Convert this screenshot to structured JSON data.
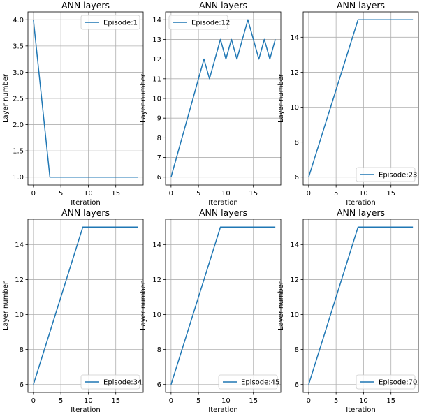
{
  "colors": {
    "line": "#1f77b4",
    "grid": "#b0b0b0",
    "axis": "#000000",
    "legend_border": "#cccccc"
  },
  "chart_data": [
    {
      "type": "line",
      "title": "ANN layers",
      "xlabel": "Iteration",
      "ylabel": "Layer number",
      "xlim": [
        -1,
        20
      ],
      "ylim": [
        0.85,
        4.15
      ],
      "xticks": [
        0,
        5,
        10,
        15
      ],
      "yticks": [
        1.0,
        1.5,
        2.0,
        2.5,
        3.0,
        3.5,
        4.0
      ],
      "ytick_labels": [
        "1.0",
        "1.5",
        "2.0",
        "2.5",
        "3.0",
        "3.5",
        "4.0"
      ],
      "grid": true,
      "legend_loc": "upper right",
      "series": [
        {
          "name": "Episode:1",
          "x": [
            0,
            1,
            2,
            3,
            4,
            5,
            6,
            7,
            8,
            9,
            10,
            11,
            12,
            13,
            14,
            15,
            16,
            17,
            18,
            19
          ],
          "y": [
            4,
            3,
            2,
            1,
            1,
            1,
            1,
            1,
            1,
            1,
            1,
            1,
            1,
            1,
            1,
            1,
            1,
            1,
            1,
            1
          ]
        }
      ]
    },
    {
      "type": "line",
      "title": "ANN layers",
      "xlabel": "Iteration",
      "ylabel": "Layer number",
      "xlim": [
        -1,
        20
      ],
      "ylim": [
        5.6,
        14.4
      ],
      "xticks": [
        0,
        5,
        10,
        15
      ],
      "yticks": [
        6,
        7,
        8,
        9,
        10,
        11,
        12,
        13,
        14
      ],
      "ytick_labels": [
        "6",
        "7",
        "8",
        "9",
        "10",
        "11",
        "12",
        "13",
        "14"
      ],
      "grid": true,
      "legend_loc": "upper left",
      "series": [
        {
          "name": "Episode:12",
          "x": [
            0,
            1,
            2,
            3,
            4,
            5,
            6,
            7,
            8,
            9,
            10,
            11,
            12,
            13,
            14,
            15,
            16,
            17,
            18,
            19
          ],
          "y": [
            6,
            7,
            8,
            9,
            10,
            11,
            12,
            11,
            12,
            13,
            12,
            13,
            12,
            13,
            14,
            13,
            12,
            13,
            12,
            13
          ]
        }
      ]
    },
    {
      "type": "line",
      "title": "ANN layers",
      "xlabel": "Iteration",
      "ylabel": "Layer number",
      "xlim": [
        -1,
        20
      ],
      "ylim": [
        5.55,
        15.45
      ],
      "xticks": [
        0,
        5,
        10,
        15
      ],
      "yticks": [
        6,
        8,
        10,
        12,
        14
      ],
      "ytick_labels": [
        "6",
        "8",
        "10",
        "12",
        "14"
      ],
      "grid": true,
      "legend_loc": "lower right",
      "series": [
        {
          "name": "Episode:23",
          "x": [
            0,
            1,
            2,
            3,
            4,
            5,
            6,
            7,
            8,
            9,
            10,
            11,
            12,
            13,
            14,
            15,
            16,
            17,
            18,
            19
          ],
          "y": [
            6,
            7,
            8,
            9,
            10,
            11,
            12,
            13,
            14,
            15,
            15,
            15,
            15,
            15,
            15,
            15,
            15,
            15,
            15,
            15
          ]
        }
      ]
    },
    {
      "type": "line",
      "title": "ANN layers",
      "xlabel": "Iteration",
      "ylabel": "Layer number",
      "xlim": [
        -1,
        20
      ],
      "ylim": [
        5.55,
        15.45
      ],
      "xticks": [
        0,
        5,
        10,
        15
      ],
      "yticks": [
        6,
        8,
        10,
        12,
        14
      ],
      "ytick_labels": [
        "6",
        "8",
        "10",
        "12",
        "14"
      ],
      "grid": true,
      "legend_loc": "lower right",
      "series": [
        {
          "name": "Episode:34",
          "x": [
            0,
            1,
            2,
            3,
            4,
            5,
            6,
            7,
            8,
            9,
            10,
            11,
            12,
            13,
            14,
            15,
            16,
            17,
            18,
            19
          ],
          "y": [
            6,
            7,
            8,
            9,
            10,
            11,
            12,
            13,
            14,
            15,
            15,
            15,
            15,
            15,
            15,
            15,
            15,
            15,
            15,
            15
          ]
        }
      ]
    },
    {
      "type": "line",
      "title": "ANN layers",
      "xlabel": "Iteration",
      "ylabel": "Layer number",
      "xlim": [
        -1,
        20
      ],
      "ylim": [
        5.55,
        15.45
      ],
      "xticks": [
        0,
        5,
        10,
        15
      ],
      "yticks": [
        6,
        8,
        10,
        12,
        14
      ],
      "ytick_labels": [
        "6",
        "8",
        "10",
        "12",
        "14"
      ],
      "grid": true,
      "legend_loc": "lower right",
      "series": [
        {
          "name": "Episode:45",
          "x": [
            0,
            1,
            2,
            3,
            4,
            5,
            6,
            7,
            8,
            9,
            10,
            11,
            12,
            13,
            14,
            15,
            16,
            17,
            18,
            19
          ],
          "y": [
            6,
            7,
            8,
            9,
            10,
            11,
            12,
            13,
            14,
            15,
            15,
            15,
            15,
            15,
            15,
            15,
            15,
            15,
            15,
            15
          ]
        }
      ]
    },
    {
      "type": "line",
      "title": "ANN layers",
      "xlabel": "Iteration",
      "ylabel": "Layer number",
      "xlim": [
        -1,
        20
      ],
      "ylim": [
        5.55,
        15.45
      ],
      "xticks": [
        0,
        5,
        10,
        15
      ],
      "yticks": [
        6,
        8,
        10,
        12,
        14
      ],
      "ytick_labels": [
        "6",
        "8",
        "10",
        "12",
        "14"
      ],
      "grid": true,
      "legend_loc": "lower right",
      "series": [
        {
          "name": "Episode:70",
          "x": [
            0,
            1,
            2,
            3,
            4,
            5,
            6,
            7,
            8,
            9,
            10,
            11,
            12,
            13,
            14,
            15,
            16,
            17,
            18,
            19
          ],
          "y": [
            6,
            7,
            8,
            9,
            10,
            11,
            12,
            13,
            14,
            15,
            15,
            15,
            15,
            15,
            15,
            15,
            15,
            15,
            15,
            15
          ]
        }
      ]
    }
  ]
}
